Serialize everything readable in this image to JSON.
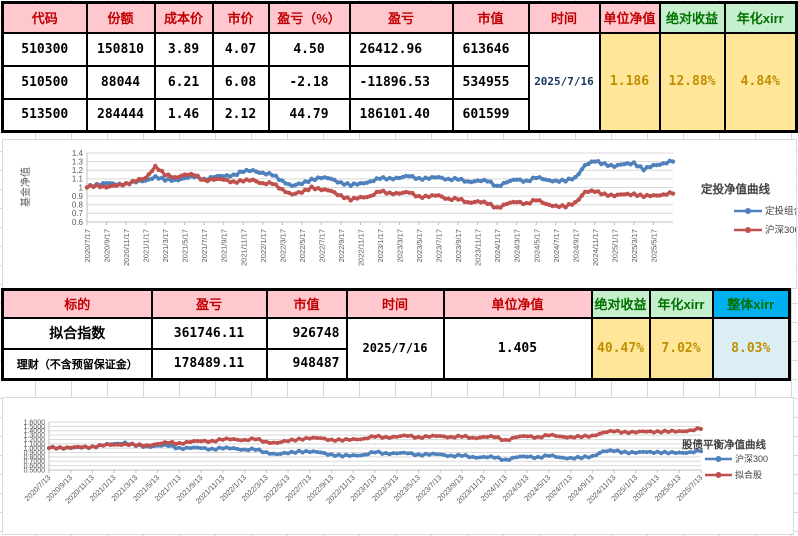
{
  "colors": {
    "header_pink": "#FFC7CE",
    "header_red": "#C00000",
    "header_green": "#C6EFCE",
    "header_blue": "#00B0F0",
    "green_text": "#007000",
    "cell_yellow": "#FFE699",
    "cell_lightblue": "#DAEEF3",
    "yellow_text": "#BF8F00",
    "time_navy": "#17375E",
    "grid_line": "#D9D9D9",
    "series_blue": "#4F81BD",
    "series_red": "#C0504D"
  },
  "table1": {
    "headers": {
      "code": "代码",
      "shares": "份额",
      "cost": "成本价",
      "price": "市价",
      "pl_pct": "盈亏（%）",
      "pl": "盈亏",
      "mv": "市值",
      "time": "时间",
      "nav": "单位净值",
      "abs_return": "绝对收益",
      "xirr": "年化xirr"
    },
    "rows": [
      {
        "code": "510300",
        "shares": "150810",
        "cost": "3.89",
        "price": "4.07",
        "pl_pct": "4.50",
        "pl": "26412.96",
        "mv": "613646"
      },
      {
        "code": "510500",
        "shares": "88044",
        "cost": "6.21",
        "price": "6.08",
        "pl_pct": "-2.18",
        "pl": "-11896.53",
        "mv": "534955"
      },
      {
        "code": "513500",
        "shares": "284444",
        "cost": "1.46",
        "price": "2.12",
        "pl_pct": "44.79",
        "pl": "186101.40",
        "mv": "601599"
      }
    ],
    "merged": {
      "time": "2025/7/16",
      "nav": "1.186",
      "abs_return": "12.88%",
      "xirr": "4.84%"
    }
  },
  "table2": {
    "headers": {
      "target": "标的",
      "pl": "盈亏",
      "mv": "市值",
      "time": "时间",
      "nav": "单位净值",
      "abs_return": "绝对收益",
      "xirr": "年化xirr",
      "overall_xirr": "整体xirr"
    },
    "rows": [
      {
        "target": "拟合指数",
        "pl": "361746.11",
        "mv": "926748"
      },
      {
        "target": "理财（不含预留保证金）",
        "pl": "178489.11",
        "mv": "948487"
      }
    ],
    "merged": {
      "time": "2025/7/16",
      "nav": "1.405",
      "abs_return": "40.47%",
      "xirr": "7.02%",
      "overall_xirr": "8.03%"
    }
  },
  "chart_data": [
    {
      "type": "line",
      "title": "定投净值曲线",
      "ylabel": "基金净值",
      "ylim": [
        0.6,
        1.4
      ],
      "ytick_step": 0.1,
      "ytick_labels": [
        "1.4",
        "1.3",
        "1.2",
        "1.1",
        "1",
        "0.9",
        "0.8",
        "0.7",
        "0.6"
      ],
      "grid": true,
      "legend_position": "right",
      "x_sampling": "monthly",
      "x_tick_labels": [
        "2020/7/17",
        "2020/9/17",
        "2020/11/17",
        "2021/1/17",
        "2021/3/17",
        "2021/5/17",
        "2021/7/17",
        "2021/9/17",
        "2021/11/17",
        "2022/1/17",
        "2022/3/17",
        "2022/5/17",
        "2022/7/17",
        "2022/9/17",
        "2022/11/17",
        "2023/1/17",
        "2023/3/17",
        "2023/5/17",
        "2023/7/17",
        "2023/9/17",
        "2023/11/17",
        "2024/1/17",
        "2024/3/17",
        "2024/5/17",
        "2024/7/17",
        "2024/9/17",
        "2024/11/17",
        "2025/1/17",
        "2025/3/17",
        "2025/5/17"
      ],
      "series": [
        {
          "name": "定投组合",
          "color": "#4F81BD",
          "values": [
            1.0,
            1.04,
            1.05,
            1.03,
            1.05,
            1.06,
            1.08,
            1.13,
            1.08,
            1.09,
            1.11,
            1.12,
            1.1,
            1.12,
            1.13,
            1.15,
            1.18,
            1.2,
            1.17,
            1.14,
            1.08,
            1.02,
            1.04,
            1.1,
            1.11,
            1.1,
            1.06,
            1.02,
            1.05,
            1.07,
            1.1,
            1.11,
            1.11,
            1.13,
            1.11,
            1.1,
            1.12,
            1.1,
            1.09,
            1.07,
            1.08,
            1.07,
            1.02,
            1.06,
            1.09,
            1.08,
            1.11,
            1.09,
            1.08,
            1.07,
            1.12,
            1.26,
            1.3,
            1.28,
            1.24,
            1.27,
            1.29,
            1.2,
            1.26,
            1.28,
            1.3
          ]
        },
        {
          "name": "沪深300",
          "color": "#C0504D",
          "values": [
            1.0,
            1.03,
            1.0,
            1.02,
            1.05,
            1.07,
            1.11,
            1.25,
            1.14,
            1.12,
            1.15,
            1.14,
            1.09,
            1.09,
            1.09,
            1.07,
            1.07,
            1.09,
            1.05,
            1.04,
            0.98,
            0.92,
            0.94,
            1.01,
            0.97,
            0.96,
            0.91,
            0.85,
            0.89,
            0.9,
            0.95,
            0.94,
            0.93,
            0.94,
            0.9,
            0.89,
            0.91,
            0.87,
            0.86,
            0.83,
            0.84,
            0.81,
            0.77,
            0.81,
            0.83,
            0.82,
            0.85,
            0.81,
            0.79,
            0.77,
            0.83,
            0.95,
            0.95,
            0.93,
            0.9,
            0.92,
            0.93,
            0.89,
            0.91,
            0.92,
            0.93
          ]
        }
      ]
    },
    {
      "type": "line",
      "title": "股债平衡净值曲线",
      "ylabel": "",
      "ylim": [
        0.5,
        1.6
      ],
      "ytick_step": 0.1,
      "ytick_labels": [
        "1.6000",
        "1.5000",
        "1.4000",
        "1.3000",
        "1.2000",
        "1.1000",
        "1.0000",
        "0.9000",
        "0.8000",
        "0.7000",
        "0.6000",
        "0.5000"
      ],
      "grid": true,
      "legend_position": "right",
      "x_sampling": "monthly",
      "x_tick_labels": [
        "2020/7/13",
        "2020/9/13",
        "2020/11/13",
        "2021/1/13",
        "2021/3/13",
        "2021/5/13",
        "2021/7/13",
        "2021/9/13",
        "2021/11/13",
        "2022/1/13",
        "2022/3/13",
        "2022/5/13",
        "2022/7/13",
        "2022/9/13",
        "2022/11/13",
        "2023/1/13",
        "2023/3/13",
        "2023/5/13",
        "2023/7/13",
        "2023/9/13",
        "2023/11/13",
        "2024/1/13",
        "2024/3/13",
        "2024/5/13",
        "2024/7/13",
        "2024/9/13",
        "2024/11/13",
        "2025/1/13",
        "2025/3/13",
        "2025/5/13",
        "2025/7/13"
      ],
      "series": [
        {
          "name": "沪深300",
          "color": "#4F81BD",
          "values": [
            1.0,
            1.02,
            1.0,
            1.01,
            1.04,
            1.06,
            1.1,
            1.13,
            1.05,
            1.04,
            1.06,
            1.05,
            1.01,
            1.0,
            1.0,
            0.99,
            0.99,
            1.0,
            0.97,
            0.96,
            0.91,
            0.86,
            0.88,
            0.94,
            0.91,
            0.9,
            0.86,
            0.81,
            0.84,
            0.85,
            0.9,
            0.89,
            0.88,
            0.88,
            0.86,
            0.85,
            0.86,
            0.83,
            0.82,
            0.8,
            0.8,
            0.78,
            0.74,
            0.79,
            0.8,
            0.8,
            0.82,
            0.79,
            0.78,
            0.77,
            0.82,
            0.93,
            0.93,
            0.92,
            0.89,
            0.91,
            0.92,
            0.88,
            0.9,
            0.91,
            0.93
          ]
        },
        {
          "name": "拟合股",
          "color": "#C0504D",
          "values": [
            1.0,
            1.02,
            1.01,
            1.02,
            1.04,
            1.06,
            1.08,
            1.1,
            1.06,
            1.07,
            1.1,
            1.12,
            1.12,
            1.14,
            1.16,
            1.17,
            1.19,
            1.21,
            1.19,
            1.2,
            1.15,
            1.12,
            1.16,
            1.22,
            1.22,
            1.23,
            1.2,
            1.17,
            1.21,
            1.22,
            1.26,
            1.26,
            1.26,
            1.28,
            1.26,
            1.26,
            1.28,
            1.26,
            1.26,
            1.24,
            1.26,
            1.25,
            1.19,
            1.25,
            1.27,
            1.26,
            1.29,
            1.27,
            1.26,
            1.25,
            1.29,
            1.36,
            1.38,
            1.38,
            1.36,
            1.38,
            1.39,
            1.37,
            1.39,
            1.41,
            1.44
          ]
        }
      ]
    }
  ]
}
